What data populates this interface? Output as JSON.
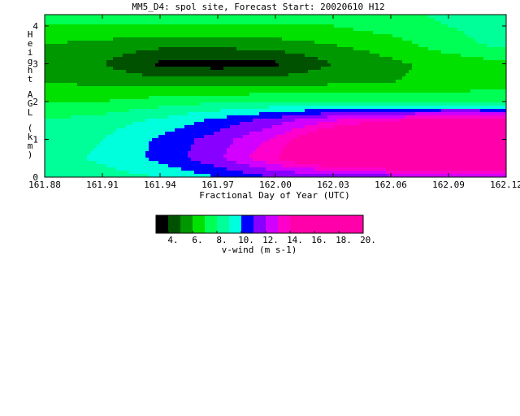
{
  "chart_data": {
    "type": "heatmap",
    "title": "MM5_D4: spol site,  Forecast Start: 20020610 H12",
    "xlabel": "Fractional Day of Year (UTC)",
    "ylabel": "Height AGL (km)",
    "x_ticks": [
      "161.88",
      "161.91",
      "161.94",
      "161.97",
      "162.00",
      "162.03",
      "162.06",
      "162.09",
      "162.12"
    ],
    "y_ticks": [
      "0",
      "1",
      "2",
      "3",
      "4"
    ],
    "xlim": [
      161.88,
      162.12
    ],
    "ylim": [
      0,
      4.3
    ],
    "colorbar": {
      "label": "v-wind (m s-1)",
      "tick_labels": [
        "4.",
        "6.",
        "8.",
        "10.",
        "12.",
        "14.",
        "16.",
        "18.",
        "20."
      ],
      "levels": [
        3,
        4,
        5,
        6,
        7,
        8,
        9,
        10,
        11,
        12,
        13,
        14,
        15,
        16,
        17,
        18,
        19,
        20
      ],
      "colors": [
        "#000000",
        "#005200",
        "#009800",
        "#00e100",
        "#00ff55",
        "#00ff99",
        "#00ffdd",
        "#0000ff",
        "#8800ff",
        "#d200ff",
        "#ff00cc",
        "#ff00aa",
        "#ff00aa",
        "#ff00aa",
        "#ff00aa",
        "#ff00aa",
        "#ff00aa"
      ]
    },
    "x": [
      161.88,
      161.91,
      161.94,
      161.97,
      162.0,
      162.03,
      162.06,
      162.09,
      162.12
    ],
    "y": [
      0,
      0.5,
      1.0,
      1.5,
      2.0,
      2.5,
      3.0,
      3.5,
      4.0,
      4.3
    ],
    "values": [
      [
        8.5,
        8.5,
        9.0,
        10.0,
        11.0,
        11.0,
        11.5,
        12.0,
        12.0
      ],
      [
        8.5,
        9.2,
        10.3,
        11.8,
        14.0,
        16.5,
        17.5,
        18.0,
        18.0
      ],
      [
        8.3,
        9.0,
        10.2,
        11.5,
        13.2,
        16.0,
        17.5,
        18.0,
        18.0
      ],
      [
        8.0,
        8.5,
        9.2,
        10.3,
        11.5,
        13.0,
        14.0,
        14.5,
        14.5
      ],
      [
        7.0,
        7.0,
        7.5,
        7.8,
        8.0,
        8.0,
        8.0,
        7.9,
        7.8
      ],
      [
        6.0,
        5.8,
        5.5,
        5.5,
        5.6,
        5.8,
        6.0,
        6.2,
        6.5
      ],
      [
        5.5,
        5.0,
        3.8,
        3.5,
        3.8,
        5.0,
        5.8,
        6.3,
        6.8
      ],
      [
        6.0,
        5.6,
        5.3,
        5.3,
        5.5,
        6.0,
        6.5,
        7.6,
        8.3
      ],
      [
        7.0,
        7.0,
        7.0,
        7.0,
        7.0,
        7.0,
        7.5,
        8.0,
        8.5
      ],
      [
        7.5,
        7.5,
        7.5,
        7.5,
        7.5,
        7.5,
        7.7,
        8.2,
        8.5
      ]
    ]
  }
}
